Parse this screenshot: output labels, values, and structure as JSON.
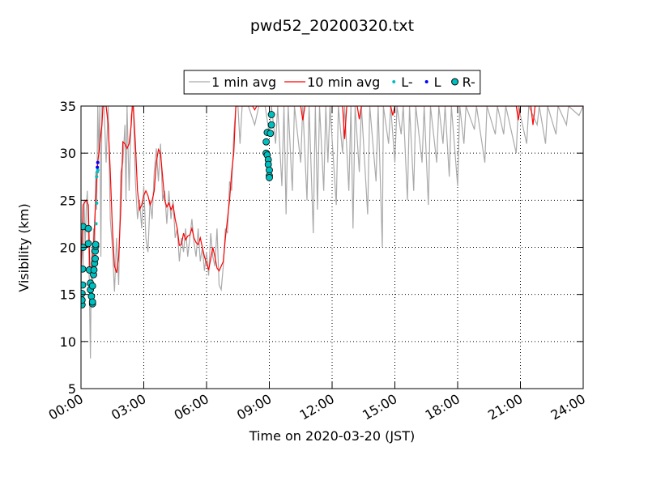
{
  "chart_data": {
    "type": "line",
    "title": "pwd52_20200320.txt",
    "xlabel": "Time on 2020-03-20 (JST)",
    "ylabel": "Visibility (km)",
    "xlim": [
      0,
      24
    ],
    "ylim": [
      5,
      35
    ],
    "xticks": [
      {
        "value": 0,
        "label": "00:00"
      },
      {
        "value": 3,
        "label": "03:00"
      },
      {
        "value": 6,
        "label": "06:00"
      },
      {
        "value": 9,
        "label": "09:00"
      },
      {
        "value": 12,
        "label": "12:00"
      },
      {
        "value": 15,
        "label": "15:00"
      },
      {
        "value": 18,
        "label": "18:00"
      },
      {
        "value": 21,
        "label": "21:00"
      },
      {
        "value": 24,
        "label": "24:00"
      }
    ],
    "yticks": [
      5,
      10,
      15,
      20,
      25,
      30,
      35
    ],
    "grid": true,
    "legend": "top",
    "series": [
      {
        "name": "1 min avg",
        "color": "#aaaaaa",
        "style": "line",
        "x": [
          0.0,
          0.05,
          0.1,
          0.15,
          0.2,
          0.25,
          0.3,
          0.35,
          0.4,
          0.45,
          0.5,
          0.55,
          0.6,
          0.65,
          0.7,
          0.75,
          0.8,
          0.85,
          0.9,
          0.95,
          1.0,
          1.1,
          1.2,
          1.3,
          1.4,
          1.5,
          1.6,
          1.7,
          1.8,
          1.9,
          2.0,
          2.1,
          2.15,
          2.2,
          2.3,
          2.4,
          2.5,
          2.6,
          2.7,
          2.8,
          2.9,
          3.0,
          3.1,
          3.2,
          3.3,
          3.4,
          3.5,
          3.6,
          3.7,
          3.8,
          3.9,
          4.0,
          4.1,
          4.2,
          4.3,
          4.4,
          4.5,
          4.6,
          4.7,
          4.8,
          4.9,
          5.0,
          5.1,
          5.2,
          5.3,
          5.4,
          5.5,
          5.6,
          5.7,
          5.8,
          5.9,
          6.0,
          6.1,
          6.2,
          6.3,
          6.4,
          6.5,
          6.6,
          6.7,
          6.8,
          6.9,
          7.0,
          7.1,
          7.2,
          7.3,
          7.4,
          7.5,
          7.6,
          7.7,
          7.9,
          8.0,
          8.3,
          8.5,
          8.8,
          9.0,
          9.1,
          9.3,
          9.4,
          9.6,
          9.7,
          9.8,
          9.9,
          10.1,
          10.2,
          10.5,
          10.6,
          10.8,
          10.9,
          11.1,
          11.2,
          11.3,
          11.4,
          11.6,
          11.7,
          11.8,
          11.9,
          12.2,
          12.3,
          12.5,
          12.6,
          12.8,
          12.9,
          13.0,
          13.1,
          13.3,
          13.4,
          13.7,
          13.8,
          14.1,
          14.2,
          14.4,
          14.45,
          14.7,
          14.8,
          15.0,
          15.1,
          15.3,
          15.4,
          15.6,
          15.7,
          15.9,
          16.0,
          16.3,
          16.4,
          16.6,
          16.7,
          17.0,
          17.1,
          17.3,
          17.4,
          17.6,
          17.7,
          18.0,
          18.1,
          18.3,
          18.4,
          18.8,
          18.9,
          19.3,
          19.4,
          19.8,
          19.9,
          20.2,
          20.3,
          20.8,
          20.9,
          21.3,
          21.4,
          21.8,
          21.9,
          22.2,
          22.3,
          22.7,
          22.8,
          23.2,
          23.3,
          23.8,
          24.0
        ],
        "values": [
          14,
          22,
          18,
          25,
          20,
          24,
          26,
          22,
          16,
          8.2,
          20,
          14,
          22,
          18,
          28,
          24,
          35,
          30,
          35,
          19,
          35,
          35,
          29,
          35,
          23,
          20,
          15.3,
          21,
          16,
          28,
          29,
          33,
          25,
          35,
          26,
          34,
          35,
          27,
          23,
          25,
          22,
          26.5,
          21,
          19.5,
          25,
          23,
          28,
          30.5,
          27,
          31,
          25,
          26,
          22.5,
          26,
          23,
          25,
          21,
          22,
          18.5,
          21,
          19.5,
          22,
          19,
          21,
          23,
          20.5,
          19,
          22,
          18.5,
          20,
          17.5,
          19.5,
          17,
          21.5,
          19,
          18,
          22,
          16,
          15.5,
          18,
          22,
          21.5,
          27,
          26,
          32,
          35,
          35,
          31,
          35,
          35,
          35,
          33,
          35,
          35,
          32,
          35,
          31,
          35,
          26.5,
          35,
          23.5,
          35,
          26,
          35,
          29,
          35,
          25,
          35,
          21.5,
          35,
          24,
          35,
          26,
          35,
          29,
          35,
          24.5,
          35,
          30,
          35,
          26,
          35,
          22,
          35,
          28,
          35,
          23.5,
          35,
          27,
          35,
          20,
          35,
          31,
          35,
          29,
          35,
          32,
          35,
          25,
          35,
          26,
          35,
          29,
          35,
          24.5,
          35,
          29,
          35,
          31,
          35,
          27.5,
          35,
          26.5,
          35,
          31,
          35,
          32.5,
          35,
          29,
          35,
          32,
          35,
          32,
          35,
          30,
          35,
          31,
          35,
          33,
          35,
          31,
          35,
          32,
          35,
          33,
          35,
          34,
          35
        ]
      },
      {
        "name": "10 min avg",
        "color": "#ff0000",
        "style": "line",
        "x": [
          0,
          0.1,
          0.25,
          0.35,
          0.42,
          0.5,
          0.6,
          0.7,
          0.8,
          0.9,
          1.0,
          1.05,
          1.2,
          1.3,
          1.4,
          1.5,
          1.6,
          1.7,
          1.8,
          1.9,
          2.0,
          2.1,
          2.2,
          2.3,
          2.4,
          2.45,
          2.5,
          2.6,
          2.7,
          2.8,
          2.9,
          3.0,
          3.1,
          3.2,
          3.3,
          3.4,
          3.5,
          3.6,
          3.7,
          3.8,
          3.9,
          4.0,
          4.1,
          4.2,
          4.3,
          4.4,
          4.5,
          4.6,
          4.7,
          4.8,
          4.9,
          5.0,
          5.1,
          5.2,
          5.3,
          5.4,
          5.5,
          5.6,
          5.7,
          5.8,
          5.9,
          6.0,
          6.1,
          6.2,
          6.3,
          6.4,
          6.5,
          6.6,
          6.7,
          6.8,
          6.9,
          7.0,
          7.1,
          7.2,
          7.3,
          7.4,
          7.5,
          8.2,
          8.3,
          8.4,
          10.5,
          10.6,
          10.7,
          12.5,
          12.6,
          12.7,
          13.2,
          13.3,
          13.4,
          14.8,
          14.9,
          15.0,
          20.8,
          20.9,
          21.0,
          21.5,
          21.6,
          21.7,
          24
        ],
        "values": [
          17.5,
          24.5,
          25,
          24.5,
          18,
          17.5,
          20,
          25,
          29,
          31,
          33,
          35,
          35,
          33,
          28,
          22,
          18,
          17.3,
          19,
          24,
          31.2,
          31,
          30.5,
          31,
          33,
          35,
          35,
          31,
          26,
          24,
          24.5,
          25.5,
          26,
          25.5,
          24.5,
          25,
          26,
          29,
          30.4,
          30,
          27.5,
          25,
          24.3,
          24.7,
          24,
          24.5,
          23,
          22,
          20.2,
          20.3,
          21.5,
          20.8,
          21.2,
          21.3,
          22,
          21,
          20.5,
          20.3,
          21,
          20,
          19,
          18.3,
          17.6,
          18.8,
          20,
          19,
          17.8,
          17.5,
          18,
          18.5,
          21,
          23,
          25,
          28,
          30,
          35,
          35,
          35,
          34.6,
          35,
          35,
          33.5,
          35,
          35,
          31.5,
          35,
          35,
          33.6,
          35,
          35,
          34,
          35,
          35,
          33.5,
          35,
          35,
          33,
          35,
          35
        ]
      },
      {
        "name": "L-",
        "color": "#00bfbf",
        "style": "dot",
        "x": [
          0.72,
          0.75,
          0.75,
          0.78,
          0.8
        ],
        "values": [
          22.5,
          24.7,
          27.5,
          28,
          28.2
        ]
      },
      {
        "name": "L",
        "color": "#0000ff",
        "style": "dot",
        "x": [
          0.78,
          0.8
        ],
        "values": [
          28.5,
          29
        ]
      },
      {
        "name": "R-",
        "color": "#00bfbf",
        "edgecolor": "#000000",
        "style": "circle",
        "x": [
          0.05,
          0.05,
          0.05,
          0.08,
          0.08,
          0.1,
          0.1,
          0.35,
          0.35,
          0.4,
          0.45,
          0.45,
          0.5,
          0.55,
          0.55,
          0.55,
          0.6,
          0.62,
          0.65,
          0.68,
          0.68,
          0.7,
          0.7,
          8.85,
          8.85,
          8.9,
          8.9,
          8.95,
          8.95,
          9.0,
          9.0,
          9.0,
          9.05,
          9.1,
          9.1
        ],
        "values": [
          13.9,
          14.4,
          15.1,
          16,
          17.7,
          20,
          22.2,
          22,
          20.4,
          17.6,
          16.2,
          15.5,
          14.8,
          14,
          14.2,
          15.9,
          17.1,
          17.6,
          18.3,
          18.8,
          19.6,
          20.1,
          20.3,
          30,
          31.2,
          29.8,
          32.2,
          29.3,
          28.8,
          28.2,
          27.6,
          27.4,
          32.1,
          33,
          34.1
        ]
      }
    ]
  }
}
